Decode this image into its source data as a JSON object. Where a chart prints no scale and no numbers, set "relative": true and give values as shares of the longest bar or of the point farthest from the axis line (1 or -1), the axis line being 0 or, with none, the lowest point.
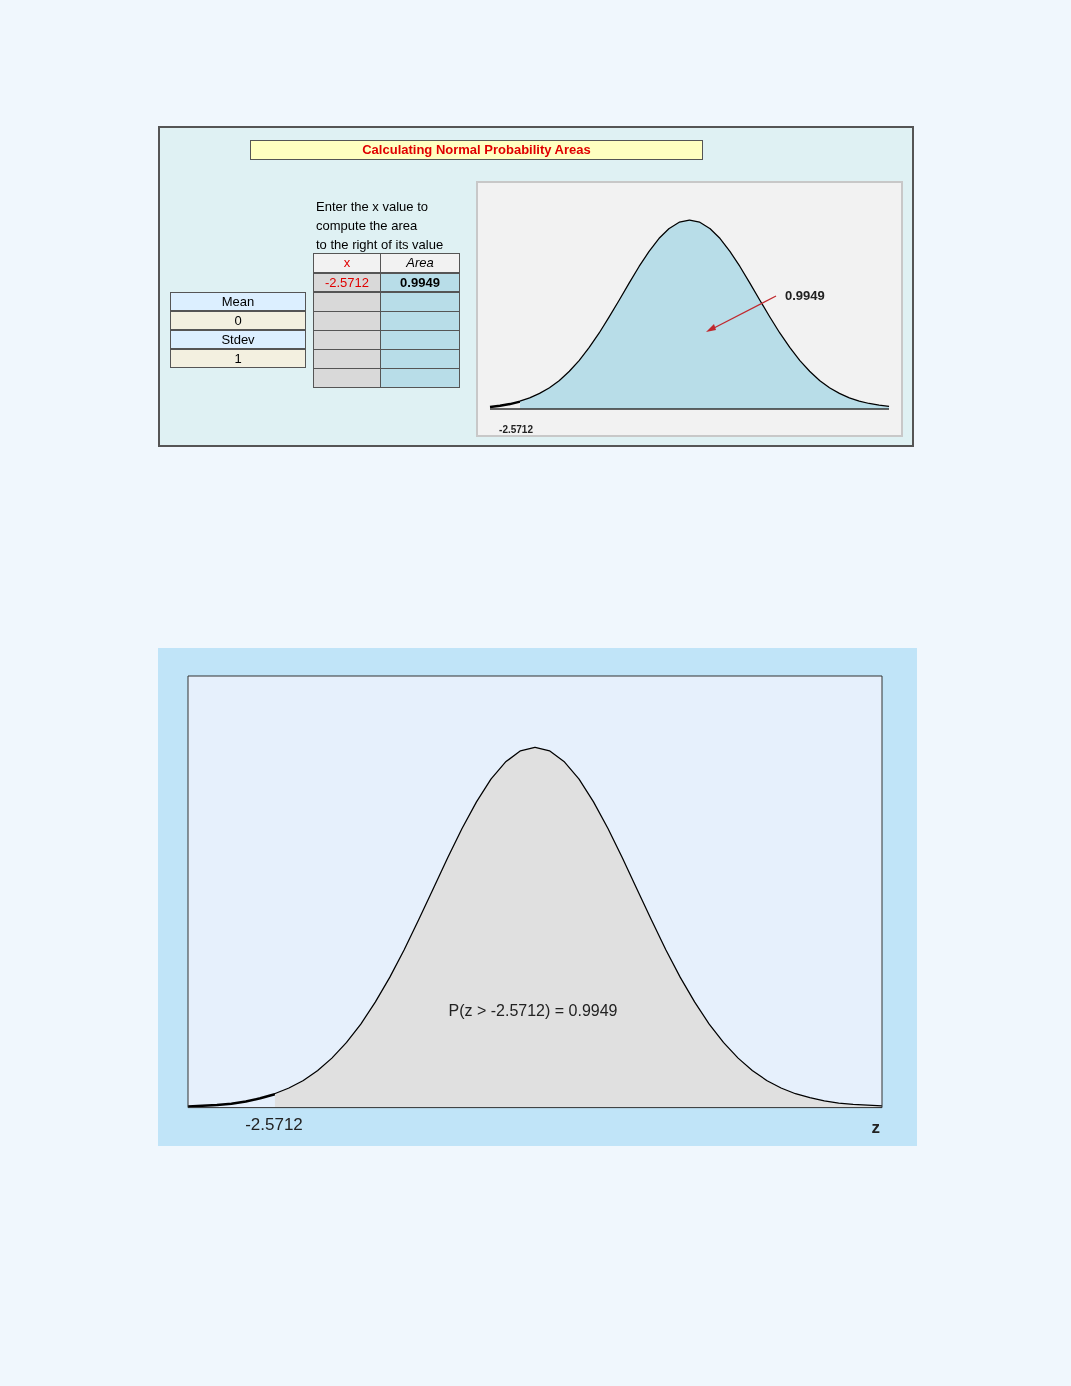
{
  "chart_data": [
    {
      "type": "other",
      "title": "Calculating Normal Probability Areas",
      "annotations": [
        "Enter the x value to",
        "compute the area",
        "to the right of its value",
        "x",
        "Area",
        "-2.5712",
        "0.9949",
        "Mean",
        "0",
        "Stdev",
        "1"
      ]
    },
    {
      "type": "line",
      "relative": true,
      "legend": false,
      "grid": false,
      "categories": [
        null,
        null,
        null,
        null,
        null,
        null,
        null,
        null,
        null,
        null,
        null,
        null,
        null,
        null,
        null,
        null,
        null,
        null,
        null,
        null,
        null,
        null,
        null,
        null,
        null,
        null,
        null,
        null,
        null,
        null,
        null,
        null,
        null,
        null,
        null,
        null,
        null,
        null,
        null,
        null,
        null
      ],
      "series": [
        {
          "type": "area",
          "color": "#b8dde8",
          "values": [
            null,
            null,
            null,
            0.039,
            0.056,
            0.08,
            0.11,
            0.149,
            0.198,
            0.256,
            0.325,
            0.402,
            0.487,
            0.576,
            0.667,
            0.755,
            0.835,
            0.904,
            0.956,
            0.989,
            1,
            0.989,
            0.956,
            0.904,
            0.835,
            0.755,
            0.667,
            0.576,
            0.487,
            0.402,
            0.325,
            0.256,
            0.198,
            0.149,
            0.11,
            0.08,
            0.056,
            0.039,
            0.026,
            0.017,
            0.011
          ]
        },
        {
          "type": "line",
          "color": "#000000",
          "values": [
            0.011,
            0.017,
            0.026,
            0.039,
            0.056,
            0.08,
            0.11,
            0.149,
            0.198,
            0.256,
            0.325,
            0.402,
            0.487,
            0.576,
            0.667,
            0.755,
            0.835,
            0.904,
            0.956,
            0.989,
            1,
            0.989,
            0.956,
            0.904,
            0.835,
            0.755,
            0.667,
            0.576,
            0.487,
            0.402,
            0.325,
            0.256,
            0.198,
            0.149,
            0.11,
            0.08,
            0.056,
            0.039,
            0.026,
            0.017,
            0.011
          ]
        }
      ],
      "annotations": [
        "0.9949",
        "-2.5712"
      ]
    },
    {
      "type": "line",
      "relative": true,
      "legend": false,
      "grid": false,
      "xlabel": "z",
      "categories": [
        null,
        null,
        null,
        null,
        null,
        null,
        null,
        null,
        null,
        null,
        null,
        null,
        null,
        null,
        null,
        null,
        null,
        null,
        null,
        null,
        null,
        null,
        null,
        null,
        null,
        null,
        null,
        null,
        null,
        null,
        null,
        null,
        null,
        null,
        null,
        null,
        null,
        null,
        null,
        null,
        null,
        null,
        null,
        null,
        null,
        null,
        null,
        null,
        null
      ],
      "series": [
        {
          "type": "area",
          "color": "#e0e0e0",
          "values": [
            null,
            null,
            null,
            null,
            null,
            null,
            0.037,
            0.053,
            0.074,
            0.102,
            0.137,
            0.18,
            0.232,
            0.293,
            0.362,
            0.439,
            0.522,
            0.608,
            0.694,
            0.776,
            0.85,
            0.913,
            0.96,
            0.99,
            1,
            0.99,
            0.96,
            0.913,
            0.85,
            0.776,
            0.694,
            0.608,
            0.522,
            0.439,
            0.362,
            0.293,
            0.232,
            0.18,
            0.137,
            0.102,
            0.074,
            0.053,
            0.037,
            0.026,
            0.017,
            0.011,
            0.007,
            0.005,
            0.003
          ]
        },
        {
          "type": "line",
          "color": "#000000",
          "values": [
            0.003,
            0.005,
            0.007,
            0.011,
            0.017,
            0.026,
            0.037,
            0.053,
            0.074,
            0.102,
            0.137,
            0.18,
            0.232,
            0.293,
            0.362,
            0.439,
            0.522,
            0.608,
            0.694,
            0.776,
            0.85,
            0.913,
            0.96,
            0.99,
            1,
            0.99,
            0.96,
            0.913,
            0.85,
            0.776,
            0.694,
            0.608,
            0.522,
            0.439,
            0.362,
            0.293,
            0.232,
            0.18,
            0.137,
            0.102,
            0.074,
            0.053,
            0.037,
            0.026,
            0.017,
            0.011,
            0.007,
            0.005,
            0.003
          ]
        }
      ],
      "annotations": [
        "P(z > -2.5712) = 0.9949",
        "-2.5712"
      ]
    }
  ]
}
